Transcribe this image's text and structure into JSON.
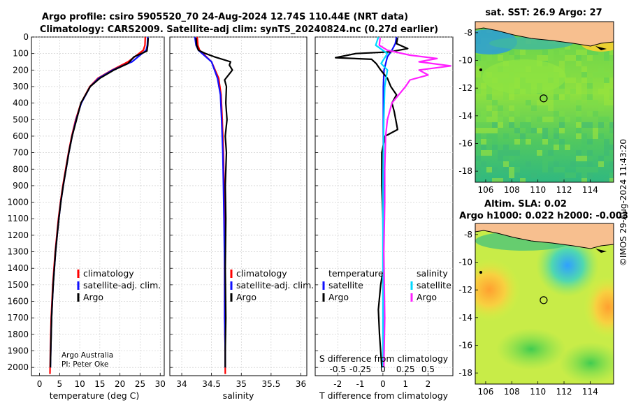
{
  "title_line1": "Argo profile: csiro 5905520_70 24-Aug-2024 12.74S 110.44E (NRT data)",
  "title_line2": "Climatology: CARS2009. Satellite-adj clim: synTS_20240824.nc (0.27d earlier)",
  "credit_line1": "Argo Australia",
  "credit_line2": "PI: Peter Oke",
  "timestamp": "©IMOS 29-Aug-2024 11:43:20",
  "colors": {
    "climatology": "#ff0000",
    "satellite_adj": "#1010ff",
    "argo": "#000000",
    "sat_T": "#00d8ff",
    "argo_S": "#ff20ff"
  },
  "chart_data": [
    {
      "type": "line",
      "panel": "temperature",
      "xlabel": "temperature (deg C)",
      "xlim": [
        -2,
        31
      ],
      "xticks": [
        0,
        5,
        10,
        15,
        20,
        25,
        30
      ],
      "ylim": [
        2050,
        0
      ],
      "yticks": [
        0,
        100,
        200,
        300,
        400,
        500,
        600,
        700,
        800,
        900,
        1000,
        1100,
        1200,
        1300,
        1400,
        1500,
        1600,
        1700,
        1800,
        1900,
        2000
      ],
      "legend": [
        "climatology",
        "satellite-adj. clim.",
        "Argo"
      ],
      "series": [
        {
          "name": "climatology",
          "x": [
            26.3,
            26.2,
            25.8,
            22,
            18,
            14.5,
            12.5,
            10.3,
            9,
            8,
            7.2,
            6.5,
            5.8,
            5.2,
            4.7,
            4.3,
            3.9,
            3.6,
            3.3,
            3.1,
            2.9,
            2.7,
            2.6
          ],
          "y": [
            0,
            50,
            80,
            150,
            200,
            250,
            300,
            400,
            500,
            600,
            700,
            800,
            900,
            1000,
            1100,
            1200,
            1300,
            1400,
            1500,
            1600,
            1700,
            1900,
            2040
          ]
        },
        {
          "name": "satellite-adj. clim.",
          "x": [
            26.9,
            26.8,
            26.5,
            23,
            18.2,
            14.7,
            12.6,
            10.4,
            9.1,
            8.1,
            7.3,
            6.6,
            5.9,
            5.3,
            4.8,
            4.4,
            4,
            3.7,
            3.4,
            3.2,
            3,
            2.8,
            2.7
          ],
          "y": [
            0,
            50,
            80,
            150,
            200,
            250,
            300,
            400,
            500,
            600,
            700,
            800,
            900,
            1000,
            1100,
            1200,
            1300,
            1400,
            1500,
            1600,
            1700,
            1900,
            2000
          ]
        },
        {
          "name": "Argo",
          "x": [
            27,
            26.9,
            26.7,
            23.5,
            22,
            18.5,
            15,
            12.6,
            10.3,
            9.2,
            8.1,
            7.3,
            6.6,
            5.9,
            5.3,
            4.8,
            4.4,
            4,
            3.7,
            3.4,
            3.2,
            3,
            2.8,
            2.7
          ],
          "y": [
            5,
            50,
            85,
            120,
            160,
            200,
            250,
            300,
            400,
            500,
            600,
            700,
            800,
            900,
            1000,
            1100,
            1200,
            1300,
            1400,
            1500,
            1600,
            1700,
            1900,
            2000
          ]
        }
      ]
    },
    {
      "type": "line",
      "panel": "salinity",
      "xlabel": "salinity",
      "xlim": [
        33.8,
        36.1
      ],
      "xticks": [
        34,
        34.5,
        35,
        35.5,
        36
      ],
      "ylim": [
        2050,
        0
      ],
      "legend": [
        "climatology",
        "satellite-adj. clim.",
        "Argo"
      ],
      "series": [
        {
          "name": "climatology",
          "x": [
            34.26,
            34.27,
            34.3,
            34.5,
            34.62,
            34.66,
            34.68,
            34.7,
            34.71,
            34.72,
            34.72,
            34.72,
            34.73,
            34.73
          ],
          "y": [
            0,
            50,
            80,
            150,
            250,
            350,
            500,
            700,
            900,
            1100,
            1400,
            1700,
            1900,
            2040
          ]
        },
        {
          "name": "satellite-adj. clim.",
          "x": [
            34.22,
            34.24,
            34.28,
            34.5,
            34.6,
            34.65,
            34.67,
            34.69,
            34.7,
            34.71,
            34.72,
            34.72,
            34.73,
            34.73
          ],
          "y": [
            0,
            50,
            80,
            150,
            250,
            350,
            500,
            700,
            900,
            1100,
            1400,
            1700,
            1900,
            2000
          ]
        },
        {
          "name": "Argo",
          "x": [
            34.24,
            34.25,
            34.28,
            34.4,
            34.55,
            34.82,
            34.8,
            34.85,
            34.72,
            34.75,
            34.74,
            34.76,
            34.73,
            34.75,
            34.73,
            34.74,
            34.73,
            34.74,
            34.73,
            34.73
          ],
          "y": [
            5,
            50,
            80,
            100,
            120,
            150,
            170,
            200,
            260,
            300,
            400,
            500,
            600,
            700,
            900,
            1100,
            1400,
            1700,
            1900,
            2000
          ]
        }
      ]
    },
    {
      "type": "line",
      "panel": "difference",
      "xlabel": "T difference from climatology",
      "xlabel_top": "S difference from climatology",
      "xlim": [
        -3,
        3.1
      ],
      "xticks": [
        -2,
        -1,
        0,
        1,
        2
      ],
      "xticks_top_labels": [
        "-0.5",
        "-0.25",
        "0",
        "0.25",
        "0.5"
      ],
      "ylim": [
        2050,
        0
      ],
      "legend_headers": [
        "temperature",
        "salinity"
      ],
      "legend_left": [
        "satellite",
        "Argo"
      ],
      "legend_right": [
        "satellite",
        "Argo"
      ],
      "series": [
        {
          "name": "temperature satellite",
          "x": [
            0.6,
            0.55,
            0.4,
            0.2,
            0.05,
            0.02,
            0.02,
            0.02,
            0.01,
            0.01,
            0.01,
            0.02,
            0
          ],
          "y": [
            0,
            40,
            80,
            120,
            200,
            300,
            500,
            800,
            1100,
            1400,
            1700,
            1900,
            2000
          ]
        },
        {
          "name": "temperature Argo",
          "x": [
            0.65,
            0.6,
            1.1,
            0.3,
            -1.2,
            -2.1,
            -0.5,
            -0.3,
            -0.1,
            0.2,
            0.35,
            0.6,
            0.4,
            0.5,
            0.65,
            0.1,
            -0.05,
            -0.05,
            0,
            0.02,
            0.02,
            -0.1,
            -0.2,
            -0.15,
            -0.05
          ],
          "y": [
            5,
            40,
            70,
            90,
            100,
            125,
            135,
            160,
            200,
            250,
            300,
            350,
            400,
            450,
            560,
            600,
            700,
            900,
            1100,
            1300,
            1400,
            1500,
            1650,
            1800,
            2000
          ]
        },
        {
          "name": "salinity satellite",
          "x": [
            -0.05,
            -0.08,
            0.05,
            -0.02,
            0.05,
            0.02,
            0.01,
            0,
            0,
            0
          ],
          "y": [
            0,
            50,
            100,
            160,
            200,
            300,
            500,
            900,
            1500,
            2000
          ]
        },
        {
          "name": "salinity Argo",
          "x": [
            -0.03,
            -0.04,
            0.05,
            0.3,
            0.6,
            0.4,
            0.75,
            0.4,
            0.5,
            0.3,
            0.25,
            0.1,
            0.05,
            0.03,
            0.02,
            0.02,
            0.01,
            0.02,
            0.01
          ],
          "y": [
            5,
            50,
            80,
            110,
            130,
            150,
            175,
            200,
            230,
            260,
            300,
            400,
            500,
            600,
            800,
            1000,
            1300,
            1700,
            2000
          ]
        }
      ]
    },
    {
      "type": "heatmap",
      "panel": "sst_map",
      "title": "sat. SST: 26.9 Argo: 27",
      "xticks": [
        106,
        108,
        110,
        112,
        114
      ],
      "yticks": [
        -8,
        -10,
        -12,
        -14,
        -16,
        -18
      ],
      "xlim": [
        105.2,
        115.8
      ],
      "ylim": [
        -18.8,
        -7.2
      ],
      "argo_position": [
        110.44,
        -12.74
      ]
    },
    {
      "type": "heatmap",
      "panel": "sla_map",
      "title": "Altim. SLA: 0.02",
      "subtitle": "Argo h1000: 0.022 h2000: -0.003",
      "xticks": [
        106,
        108,
        110,
        112,
        114
      ],
      "yticks": [
        -8,
        -10,
        -12,
        -14,
        -16,
        -18
      ],
      "xlim": [
        105.2,
        115.8
      ],
      "ylim": [
        -18.8,
        -7.2
      ],
      "argo_position": [
        110.44,
        -12.74
      ]
    }
  ]
}
